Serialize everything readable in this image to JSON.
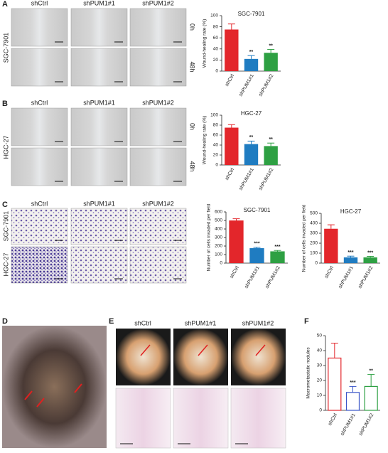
{
  "figure": {
    "panel_A": {
      "label": "A",
      "columns": [
        "shCtrl",
        "shPUM1#1",
        "shPUM1#2"
      ],
      "cell_line": "SGC-7901",
      "times": [
        "0h",
        "48h"
      ]
    },
    "panel_B": {
      "label": "B",
      "columns": [
        "shCtrl",
        "shPUM1#1",
        "shPUM1#2"
      ],
      "cell_line": "HGC-27",
      "times": [
        "0h",
        "48h"
      ]
    },
    "panel_C": {
      "label": "C",
      "columns": [
        "shCtrl",
        "shPUM1#1",
        "shPUM1#2"
      ],
      "cell_lines": [
        "SGC-7901",
        "HGC-27"
      ]
    },
    "panel_D": {
      "label": "D"
    },
    "panel_E": {
      "label": "E",
      "columns": [
        "shCtrl",
        "shPUM1#1",
        "shPUM1#2"
      ]
    },
    "panel_F": {
      "label": "F"
    }
  },
  "chart_data": [
    {
      "type": "bar",
      "title": "SGC-7901",
      "y_label": "Wound-healing rate (%)",
      "categories": [
        "shCtrl",
        "shPUM1#1",
        "shPUM1#2"
      ],
      "values": [
        75,
        22,
        33
      ],
      "errors": [
        10,
        6,
        6
      ],
      "annotations": [
        null,
        "**",
        "**"
      ],
      "colors": [
        "#e3262b",
        "#1f7cc1",
        "#2ea043"
      ],
      "filled": true,
      "ylim": [
        0,
        100
      ],
      "yticks": [
        0,
        20,
        40,
        60,
        80,
        100
      ]
    },
    {
      "type": "bar",
      "title": "HGC-27",
      "y_label": "Wound-healing rate (%)",
      "categories": [
        "shCtrl",
        "shPUM1#1",
        "shPUM1#2"
      ],
      "values": [
        75,
        42,
        38
      ],
      "errors": [
        6,
        6,
        6
      ],
      "annotations": [
        null,
        "**",
        "**"
      ],
      "colors": [
        "#e3262b",
        "#1f7cc1",
        "#2ea043"
      ],
      "filled": true,
      "ylim": [
        0,
        100
      ],
      "yticks": [
        0,
        20,
        40,
        60,
        80,
        100
      ]
    },
    {
      "type": "bar",
      "title": "SGC-7901",
      "y_label": "Number of cells invaded per field",
      "categories": [
        "shCtrl",
        "shPUM1#1",
        "shPUM1#2"
      ],
      "values": [
        500,
        175,
        138
      ],
      "errors": [
        20,
        12,
        10
      ],
      "annotations": [
        null,
        "***",
        "***"
      ],
      "colors": [
        "#e3262b",
        "#1f7cc1",
        "#2ea043"
      ],
      "filled": true,
      "ylim": [
        0,
        600
      ],
      "yticks": [
        0,
        100,
        200,
        300,
        400,
        500,
        600
      ]
    },
    {
      "type": "bar",
      "title": "HGC-27",
      "y_label": "Number of cells invaded per field",
      "categories": [
        "shCtrl",
        "shPUM1#1",
        "shPUM1#2"
      ],
      "values": [
        345,
        58,
        58
      ],
      "errors": [
        40,
        12,
        10
      ],
      "annotations": [
        null,
        "***",
        "***"
      ],
      "colors": [
        "#e3262b",
        "#1f7cc1",
        "#2ea043"
      ],
      "filled": true,
      "ylim": [
        0,
        500
      ],
      "yticks": [
        0,
        100,
        200,
        300,
        400,
        500
      ]
    },
    {
      "type": "bar",
      "y_label": "Macrometastatic nodules",
      "categories": [
        "shCtrl",
        "shPUM1#1",
        "shPUM1#2"
      ],
      "values": [
        35,
        12,
        16
      ],
      "errors": [
        10,
        4,
        8
      ],
      "annotations": [
        null,
        "***",
        "**"
      ],
      "colors": [
        "#e3262b",
        "#3a55c8",
        "#2ea043"
      ],
      "filled": false,
      "ylim": [
        0,
        50
      ],
      "yticks": [
        0,
        10,
        20,
        30,
        40,
        50
      ]
    }
  ]
}
